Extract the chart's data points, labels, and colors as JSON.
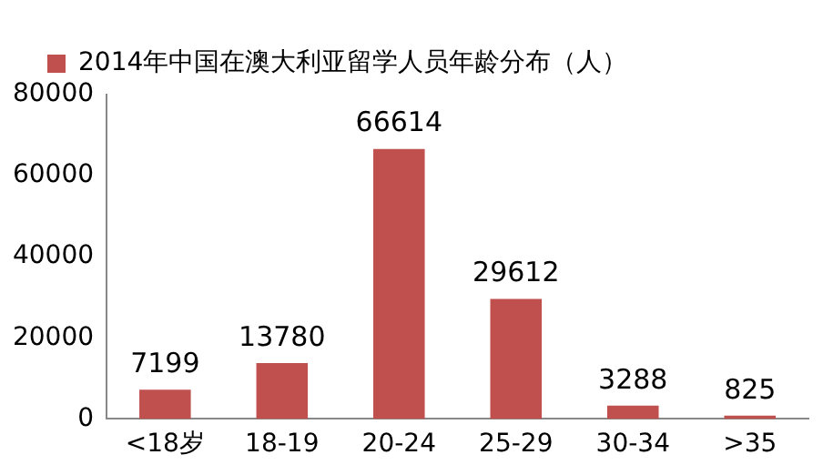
{
  "chart_data": {
    "type": "bar",
    "categories": [
      "<18岁",
      "18-19",
      "20-24",
      "25-29",
      "30-34",
      ">35"
    ],
    "series": [
      {
        "name": "2014年中国在澳大利亚留学人员年龄分布（人）",
        "color": "#c0504d",
        "values": [
          7199,
          13780,
          66614,
          29612,
          3288,
          825
        ]
      }
    ],
    "ylim": [
      0,
      80000
    ],
    "yticks": [
      0,
      20000,
      40000,
      60000,
      80000
    ],
    "grid": false,
    "legend": "top",
    "data_labels": true
  }
}
